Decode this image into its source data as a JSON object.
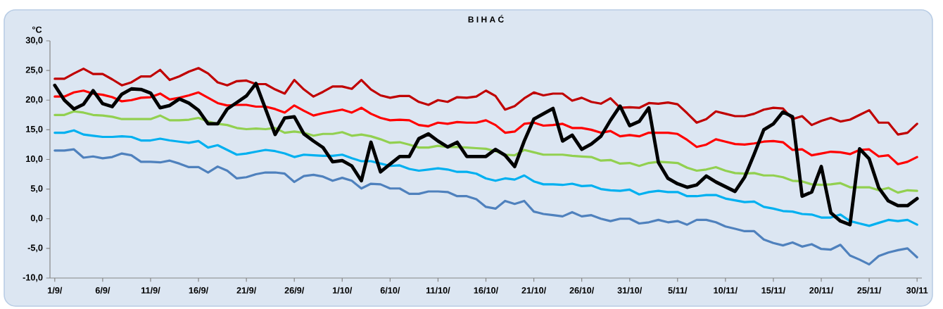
{
  "chart_data": {
    "type": "line",
    "title": "B I H A Ć",
    "ylabel": "°C",
    "categories": [
      "1/9/",
      null,
      null,
      null,
      null,
      "6/9/",
      null,
      null,
      null,
      null,
      "11/9/",
      null,
      null,
      null,
      null,
      "16/9/",
      null,
      null,
      null,
      null,
      "21/9/",
      null,
      null,
      null,
      null,
      "26/9/",
      null,
      null,
      null,
      null,
      "1/10/",
      null,
      null,
      null,
      null,
      "6/10/",
      null,
      null,
      null,
      null,
      "11/10/",
      null,
      null,
      null,
      null,
      "16/10/",
      null,
      null,
      null,
      null,
      "21/10/",
      null,
      null,
      null,
      null,
      "26/10/",
      null,
      null,
      null,
      null,
      "31/10/",
      null,
      null,
      null,
      null,
      "5/11/",
      null,
      null,
      null,
      null,
      "10/11/",
      null,
      null,
      null,
      null,
      "15/11/",
      null,
      null,
      null,
      null,
      "20/11/",
      null,
      null,
      null,
      null,
      "25/11/",
      null,
      null,
      null,
      null,
      "30/11"
    ],
    "ylim": [
      -10,
      30
    ],
    "yticks": [
      {
        "value": -10,
        "label": "-10,0"
      },
      {
        "value": -5,
        "label": "-5,0"
      },
      {
        "value": 0,
        "label": "0,0"
      },
      {
        "value": 5,
        "label": "5,0"
      },
      {
        "value": 10,
        "label": "10,0"
      },
      {
        "value": 15,
        "label": "15,0"
      },
      {
        "value": 20,
        "label": "20,0"
      },
      {
        "value": 25,
        "label": "25,0"
      },
      {
        "value": 30,
        "label": "30,0"
      }
    ],
    "grid": false,
    "line_style": "solid",
    "series": [
      {
        "color": "#c00000",
        "values": [
          23.6,
          23.6,
          24.5,
          25.3,
          24.4,
          24.4,
          23.5,
          22.5,
          23.0,
          24.0,
          24.0,
          25.1,
          23.4,
          24.0,
          24.8,
          25.4,
          24.5,
          23.0,
          22.5,
          23.2,
          23.3,
          22.7,
          22.7,
          21.8,
          21.1,
          23.4,
          21.8,
          20.6,
          21.4,
          22.3,
          22.3,
          21.9,
          23.4,
          21.8,
          20.8,
          20.4,
          20.7,
          20.7,
          19.7,
          19.2,
          20.0,
          19.7,
          20.5,
          20.4,
          20.6,
          21.6,
          20.7,
          18.4,
          19.0,
          20.3,
          21.3,
          20.8,
          21.1,
          21.1,
          19.9,
          20.4,
          19.7,
          19.4,
          20.3,
          18.7,
          18.8,
          18.7,
          19.5,
          19.4,
          19.6,
          19.3,
          17.8,
          16.2,
          16.8,
          18.1,
          17.7,
          17.3,
          17.3,
          17.7,
          18.4,
          18.7,
          18.6,
          16.8,
          17.3,
          15.8,
          16.5,
          17.0,
          16.4,
          16.7,
          17.5,
          18.3,
          16.2,
          16.2,
          14.2,
          14.5,
          16.0
        ]
      },
      {
        "color": "#ff0000",
        "values": [
          20.6,
          20.6,
          21.3,
          21.6,
          21.1,
          20.9,
          20.5,
          19.8,
          20.0,
          20.4,
          20.5,
          21.1,
          20.1,
          20.4,
          20.8,
          21.3,
          20.4,
          19.5,
          19.1,
          19.2,
          19.2,
          18.9,
          18.9,
          18.5,
          17.9,
          19.1,
          18.2,
          17.4,
          17.8,
          18.1,
          18.4,
          17.9,
          18.7,
          17.7,
          17.0,
          16.6,
          16.7,
          16.6,
          15.8,
          15.6,
          16.2,
          16.0,
          16.3,
          16.2,
          16.2,
          16.6,
          15.8,
          14.5,
          14.7,
          16.0,
          16.2,
          15.7,
          15.8,
          16.0,
          15.3,
          15.3,
          15.0,
          14.5,
          14.8,
          13.9,
          14.1,
          13.9,
          14.5,
          14.5,
          14.5,
          14.3,
          13.3,
          12.1,
          12.5,
          13.4,
          13.0,
          12.6,
          12.5,
          12.7,
          13.0,
          13.1,
          12.9,
          11.6,
          11.7,
          10.7,
          11.0,
          11.3,
          11.2,
          10.9,
          11.6,
          11.7,
          10.5,
          10.7,
          9.2,
          9.6,
          10.4
        ]
      },
      {
        "color": "#92d050",
        "values": [
          17.5,
          17.5,
          18.1,
          17.9,
          17.5,
          17.4,
          17.2,
          16.8,
          16.8,
          16.8,
          16.8,
          17.4,
          16.6,
          16.6,
          16.7,
          17.0,
          16.4,
          16.0,
          15.8,
          15.3,
          15.1,
          15.2,
          15.1,
          15.3,
          14.5,
          14.7,
          14.5,
          14.0,
          14.3,
          14.3,
          14.6,
          14.0,
          14.2,
          13.9,
          13.4,
          12.8,
          12.9,
          12.5,
          12.0,
          12.0,
          12.3,
          12.1,
          12.1,
          12.0,
          11.9,
          11.8,
          11.4,
          10.8,
          10.7,
          11.6,
          11.2,
          10.8,
          10.8,
          10.8,
          10.6,
          10.5,
          10.4,
          9.8,
          9.9,
          9.3,
          9.4,
          8.9,
          9.4,
          9.6,
          9.5,
          9.4,
          8.6,
          8.1,
          8.3,
          8.7,
          8.1,
          7.7,
          7.6,
          7.7,
          7.3,
          7.3,
          7.0,
          6.4,
          6.3,
          5.8,
          5.7,
          5.8,
          6.0,
          5.3,
          5.3,
          5.3,
          4.8,
          5.2,
          4.4,
          4.8,
          4.7
        ]
      },
      {
        "color": "#00b0f0",
        "values": [
          14.5,
          14.5,
          14.9,
          14.2,
          14.0,
          13.8,
          13.8,
          13.9,
          13.8,
          13.2,
          13.2,
          13.5,
          13.2,
          13.0,
          12.8,
          13.1,
          12.0,
          12.4,
          11.6,
          10.8,
          11.0,
          11.3,
          11.6,
          11.4,
          11.0,
          10.4,
          10.8,
          10.7,
          10.6,
          10.6,
          10.8,
          10.2,
          9.7,
          9.7,
          9.3,
          8.9,
          9.0,
          8.4,
          8.1,
          8.3,
          8.5,
          8.3,
          7.9,
          7.9,
          7.6,
          6.8,
          6.4,
          6.8,
          6.6,
          7.3,
          6.3,
          5.8,
          5.8,
          5.7,
          5.9,
          5.5,
          5.6,
          5.0,
          4.8,
          4.7,
          4.9,
          4.1,
          4.5,
          4.7,
          4.5,
          4.5,
          3.8,
          3.8,
          4.0,
          4.0,
          3.4,
          3.1,
          2.8,
          2.9,
          2.0,
          1.7,
          1.3,
          1.2,
          0.8,
          0.7,
          0.2,
          0.2,
          0.7,
          -0.4,
          -0.8,
          -1.2,
          -0.7,
          -0.2,
          -0.4,
          -0.2,
          -1.0
        ]
      },
      {
        "color": "#4f81bd",
        "values": [
          11.5,
          11.5,
          11.7,
          10.3,
          10.5,
          10.2,
          10.4,
          11.0,
          10.7,
          9.6,
          9.6,
          9.5,
          9.8,
          9.3,
          8.7,
          8.7,
          7.8,
          8.8,
          8.1,
          6.8,
          7.0,
          7.5,
          7.8,
          7.8,
          7.6,
          6.2,
          7.2,
          7.4,
          7.1,
          6.4,
          6.9,
          6.4,
          5.1,
          5.9,
          5.8,
          5.1,
          5.1,
          4.2,
          4.2,
          4.6,
          4.6,
          4.5,
          3.8,
          3.8,
          3.3,
          2.0,
          1.7,
          3.0,
          2.5,
          3.0,
          1.2,
          0.8,
          0.6,
          0.4,
          1.1,
          0.4,
          0.6,
          0.0,
          -0.4,
          0.0,
          0.0,
          -0.8,
          -0.6,
          -0.2,
          -0.6,
          -0.4,
          -1.0,
          -0.2,
          -0.2,
          -0.6,
          -1.3,
          -1.7,
          -2.1,
          -2.1,
          -3.5,
          -4.1,
          -4.5,
          -4.0,
          -4.7,
          -4.3,
          -5.1,
          -5.2,
          -4.4,
          -6.2,
          -6.9,
          -7.7,
          -6.3,
          -5.7,
          -5.3,
          -5.0,
          -6.5
        ]
      },
      {
        "color": "#000000",
        "values": [
          22.5,
          20.0,
          18.5,
          19.3,
          21.6,
          19.4,
          18.9,
          21.0,
          21.9,
          21.8,
          21.2,
          18.7,
          19.1,
          20.2,
          19.5,
          18.3,
          16.0,
          16.0,
          18.5,
          19.6,
          20.7,
          22.8,
          18.5,
          14.2,
          17.0,
          17.2,
          14.3,
          13.1,
          12.0,
          9.6,
          9.8,
          8.9,
          6.4,
          12.9,
          7.9,
          9.2,
          10.5,
          10.5,
          13.5,
          14.3,
          13.1,
          12.1,
          12.9,
          10.5,
          10.5,
          10.5,
          11.7,
          10.7,
          8.8,
          13.1,
          16.8,
          17.7,
          18.6,
          13.1,
          14.1,
          11.7,
          12.6,
          13.9,
          16.6,
          19.0,
          15.7,
          16.4,
          18.7,
          9.5,
          6.8,
          5.9,
          5.3,
          5.7,
          7.2,
          6.2,
          5.4,
          4.6,
          7.0,
          10.9,
          15.0,
          16.0,
          18.0,
          17.2,
          3.8,
          4.5,
          8.8,
          1.0,
          -0.4,
          -1.0,
          11.8,
          10.1,
          5.2,
          3.0,
          2.2,
          2.2,
          3.4
        ]
      }
    ]
  }
}
